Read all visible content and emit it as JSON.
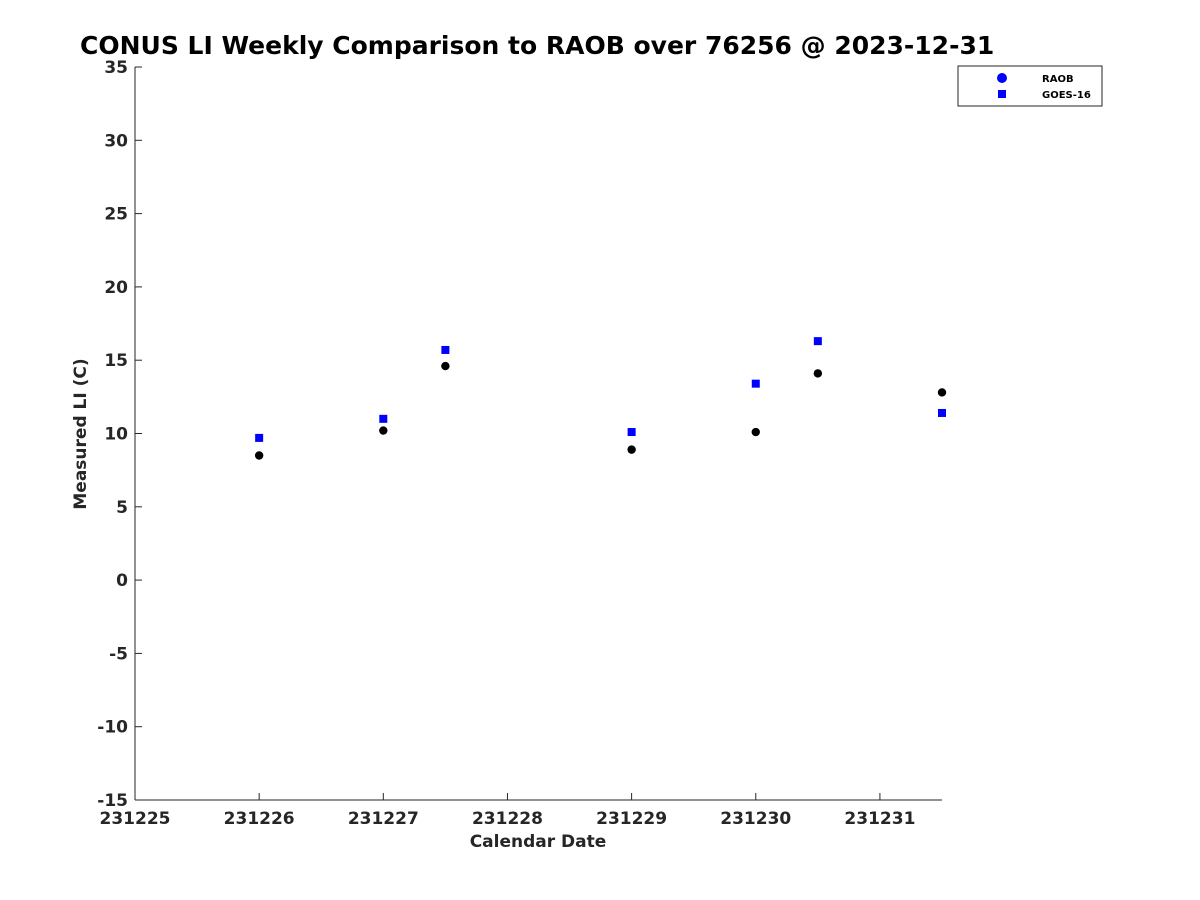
{
  "chart_data": {
    "type": "scatter",
    "title": "CONUS LI Weekly Comparison to RAOB over 76256 @ 2023-12-31",
    "xlabel": "Calendar Date",
    "ylabel": "Measured LI (C)",
    "xlim": [
      "2023-12-25",
      "2023-12-31T12:00"
    ],
    "ylim": [
      -15,
      35
    ],
    "x_ticks": [
      {
        "x": "2023-12-25",
        "label": "231225"
      },
      {
        "x": "2023-12-26",
        "label": "231226"
      },
      {
        "x": "2023-12-27",
        "label": "231227"
      },
      {
        "x": "2023-12-28",
        "label": "231228"
      },
      {
        "x": "2023-12-29",
        "label": "231229"
      },
      {
        "x": "2023-12-30",
        "label": "231230"
      },
      {
        "x": "2023-12-31",
        "label": "231231"
      }
    ],
    "y_ticks": [
      -15,
      -10,
      -5,
      0,
      5,
      10,
      15,
      20,
      25,
      30,
      35
    ],
    "grid": false,
    "legend_position": "top-right",
    "series": [
      {
        "name": "RAOB",
        "marker": "circle",
        "color": "#000000",
        "legend_color": "#0000ff",
        "points": [
          {
            "x": "2023-12-26",
            "y": 8.5
          },
          {
            "x": "2023-12-27",
            "y": 10.2
          },
          {
            "x": "2023-12-27T12:00",
            "y": 14.6
          },
          {
            "x": "2023-12-29",
            "y": 8.9
          },
          {
            "x": "2023-12-30",
            "y": 10.1
          },
          {
            "x": "2023-12-30T12:00",
            "y": 14.1
          },
          {
            "x": "2023-12-31T12:00",
            "y": 12.8
          }
        ]
      },
      {
        "name": "GOES-16",
        "marker": "square",
        "color": "#0000ff",
        "legend_color": "#0000ff",
        "points": [
          {
            "x": "2023-12-26",
            "y": 9.7
          },
          {
            "x": "2023-12-27",
            "y": 11.0
          },
          {
            "x": "2023-12-27T12:00",
            "y": 15.7
          },
          {
            "x": "2023-12-29",
            "y": 10.1
          },
          {
            "x": "2023-12-30",
            "y": 13.4
          },
          {
            "x": "2023-12-30T12:00",
            "y": 16.3
          },
          {
            "x": "2023-12-31T12:00",
            "y": 11.4
          }
        ]
      }
    ]
  }
}
